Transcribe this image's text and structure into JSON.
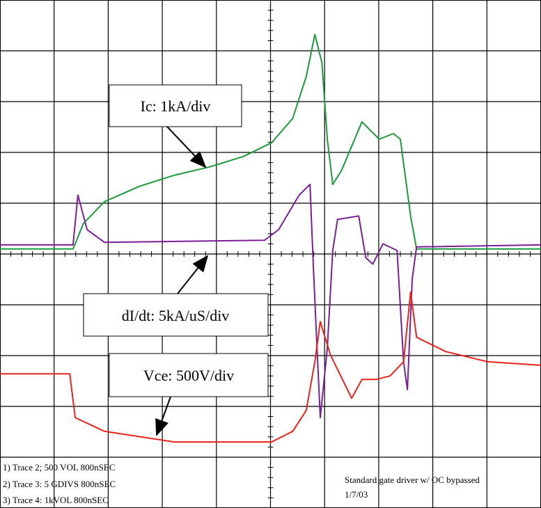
{
  "chart_data": {
    "type": "line",
    "xlim": [
      0,
      10
    ],
    "ylim": [
      -5,
      5
    ],
    "xticks": [
      1,
      2,
      3,
      4,
      5,
      6,
      7,
      8,
      9
    ],
    "yticks": [
      -4,
      -3,
      -2,
      -1,
      0,
      1,
      2,
      3,
      4
    ],
    "grid": true,
    "series": [
      {
        "name": "Ic: 1kA/div",
        "color": "#1a9a3c",
        "x": [
          0,
          1.35,
          1.54,
          1.93,
          2.57,
          3.22,
          3.86,
          4.5,
          5.02,
          5.41,
          5.66,
          5.82,
          5.95,
          6.05,
          6.15,
          6.31,
          6.69,
          7.01,
          7.27,
          7.4,
          7.59,
          7.7,
          10
        ],
        "values": [
          0.1,
          0.1,
          0.6,
          1.03,
          1.33,
          1.55,
          1.71,
          1.92,
          2.19,
          2.67,
          3.49,
          4.32,
          3.77,
          2.26,
          1.37,
          1.64,
          2.6,
          2.26,
          2.37,
          2.26,
          0.75,
          0.1,
          0.1
        ]
      },
      {
        "name": "dI/dt: 5kA/uS/div",
        "color": "#7a1f96",
        "x": [
          0,
          1.35,
          1.44,
          1.61,
          1.93,
          4.89,
          5.15,
          5.53,
          5.73,
          5.79,
          5.86,
          5.92,
          6.05,
          6.15,
          6.24,
          6.63,
          6.76,
          6.89,
          7.08,
          7.34,
          7.46,
          7.53,
          7.62,
          7.7,
          10
        ],
        "values": [
          0.18,
          0.18,
          1.16,
          0.48,
          0.23,
          0.27,
          0.48,
          1.16,
          1.37,
          -0.2,
          -1.85,
          -3.22,
          -1.85,
          0.07,
          0.68,
          0.75,
          -0.07,
          -0.2,
          0.2,
          0.07,
          -2.12,
          -2.67,
          -0.48,
          0.14,
          0.18
        ]
      },
      {
        "name": "Vce: 500V/div",
        "color": "#e8231c",
        "x": [
          0,
          1.29,
          1.39,
          1.93,
          3.22,
          5.02,
          5.41,
          5.66,
          5.82,
          5.92,
          6.11,
          6.5,
          6.69,
          6.95,
          7.21,
          7.46,
          7.59,
          7.7,
          8.24,
          9.01,
          10
        ],
        "values": [
          -2.36,
          -2.36,
          -3.22,
          -3.49,
          -3.7,
          -3.7,
          -3.49,
          -3.08,
          -2.12,
          -1.33,
          -1.99,
          -2.84,
          -2.47,
          -2.47,
          -2.4,
          -2.12,
          -0.75,
          -1.64,
          -1.92,
          -2.12,
          -2.19
        ]
      }
    ],
    "notes_left": [
      "1) Trace 2;   500 VOL  800nSEC",
      "2) Trace 3:   5 GDIVS  800nSEC",
      "3) Trace 4:   1kVOL  800nSEC"
    ],
    "notes_right": [
      "Standard gate driver w/ OC bypassed",
      "1/7/03"
    ]
  }
}
